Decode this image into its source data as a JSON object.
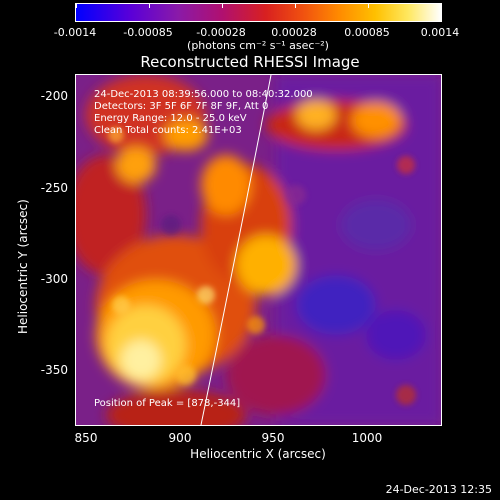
{
  "colorbar": {
    "ticks": [
      "-0.0014",
      "-0.00085",
      "-0.00028",
      "0.00028",
      "0.00085",
      "0.0014"
    ],
    "unit": "(photons cm⁻² s⁻¹ asec⁻²)"
  },
  "title": "Reconstructed RHESSI Image",
  "info": {
    "time_range": "24-Dec-2013 08:39:56.000 to 08:40:32.000",
    "detectors": "Detectors: 3F 5F 6F 7F 8F 9F, Att 0",
    "energy": "Energy Range: 12.0 - 25.0 keV",
    "method": "Clean    Total counts: 2.41E+03"
  },
  "peak": "Position of Peak = [878,-344]",
  "axes": {
    "xlabel": "Heliocentric X (arcsec)",
    "ylabel": "Heliocentric Y (arcsec)",
    "xticks": [
      "850",
      "900",
      "950",
      "1000"
    ],
    "yticks": [
      "-200",
      "-250",
      "-300",
      "-350"
    ]
  },
  "timestamp": "24-Dec-2013 12:35"
}
